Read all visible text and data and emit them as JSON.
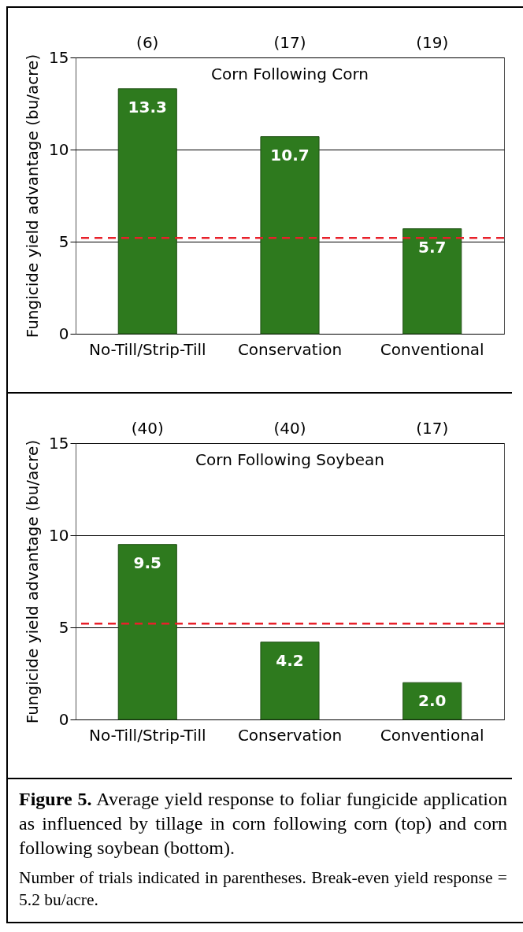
{
  "chart_data": [
    {
      "type": "bar",
      "title": "Corn Following Corn",
      "categories": [
        "No-Till/Strip-Till",
        "Conservation",
        "Conventional"
      ],
      "values": [
        13.3,
        10.7,
        5.7
      ],
      "value_labels": [
        "13.3",
        "10.7",
        "5.7"
      ],
      "color": "#2e7a1e",
      "ylabel": "Fungicide yield advantage (bu/acre)",
      "ylim": [
        0,
        15
      ],
      "yticks": [
        0,
        5,
        10,
        15
      ],
      "grid": "y",
      "ref_lines": [
        {
          "axis": "y",
          "value": 5.2,
          "color": "#e8202a",
          "line_style": "dashed"
        }
      ],
      "annotations": [
        "(6)",
        "(17)",
        "(19)"
      ]
    },
    {
      "type": "bar",
      "title": "Corn Following Soybean",
      "categories": [
        "No-Till/Strip-Till",
        "Conservation",
        "Conventional"
      ],
      "values": [
        9.5,
        4.2,
        2.0
      ],
      "value_labels": [
        "9.5",
        "4.2",
        "2.0"
      ],
      "color": "#2e7a1e",
      "ylabel": "Fungicide yield advantage (bu/acre)",
      "ylim": [
        0,
        15
      ],
      "yticks": [
        0,
        5,
        10,
        15
      ],
      "grid": "y",
      "ref_lines": [
        {
          "axis": "y",
          "value": 5.2,
          "color": "#e8202a",
          "line_style": "dashed"
        }
      ],
      "annotations": [
        "(40)",
        "(40)",
        "(17)",
        "Figure 5.  Average yield response to foliar fungicide application as influenced by tillage in corn following corn (top) and corn following soybean (bottom).",
        "Number of trials indicated in parentheses. Break-even yield response = 5.2 bu/acre."
      ]
    }
  ]
}
